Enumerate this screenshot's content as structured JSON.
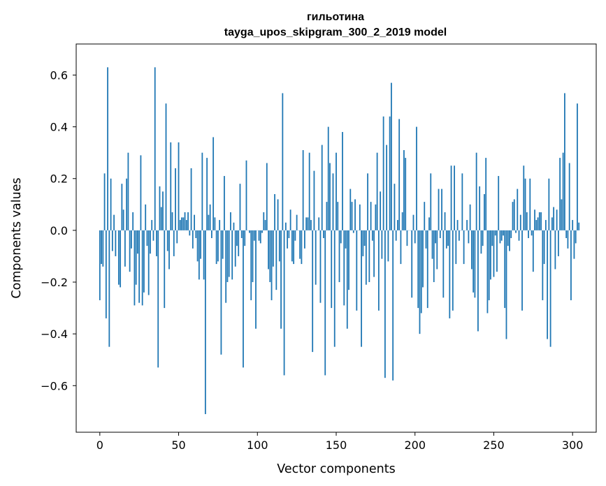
{
  "chart_data": {
    "type": "bar",
    "title": "гильотина",
    "subtitle": "tayga_upos_skipgram_300_2_2019 model",
    "xlabel": "Vector components",
    "ylabel": "Components values",
    "xlim": [
      -15,
      315
    ],
    "ylim": [
      -0.78,
      0.72
    ],
    "xticks": [
      0,
      50,
      100,
      150,
      200,
      250,
      300
    ],
    "xtick_labels": [
      "0",
      "50",
      "100",
      "150",
      "200",
      "250",
      "300"
    ],
    "yticks": [
      -0.6,
      -0.4,
      -0.2,
      0.0,
      0.2,
      0.4,
      0.6
    ],
    "ytick_labels": [
      "−0.6",
      "−0.4",
      "−0.2",
      "0.0",
      "0.2",
      "0.4",
      "0.6"
    ],
    "bar_color": "#1f77b4",
    "grid": false,
    "legend": "none",
    "values": [
      -0.27,
      -0.13,
      -0.14,
      0.22,
      -0.34,
      0.63,
      -0.45,
      0.2,
      -0.08,
      0.06,
      -0.1,
      0.0,
      -0.21,
      -0.22,
      0.18,
      0.08,
      -0.14,
      0.2,
      0.3,
      -0.16,
      -0.07,
      0.07,
      -0.29,
      -0.21,
      -0.09,
      -0.28,
      0.29,
      -0.29,
      -0.24,
      0.1,
      -0.06,
      -0.25,
      -0.09,
      0.04,
      -0.04,
      0.63,
      -0.1,
      -0.53,
      0.17,
      0.09,
      0.15,
      -0.3,
      0.49,
      -0.08,
      -0.15,
      0.34,
      0.07,
      -0.1,
      0.24,
      -0.05,
      0.34,
      0.04,
      0.05,
      0.05,
      0.07,
      0.04,
      0.07,
      -0.02,
      0.24,
      -0.07,
      0.06,
      -0.03,
      -0.12,
      -0.19,
      -0.11,
      0.3,
      -0.19,
      -0.71,
      0.28,
      0.06,
      0.1,
      -0.03,
      0.36,
      0.05,
      -0.13,
      -0.12,
      0.04,
      -0.48,
      -0.11,
      0.21,
      -0.28,
      -0.2,
      -0.18,
      0.07,
      -0.19,
      0.03,
      -0.14,
      -0.06,
      -0.1,
      0.18,
      -0.03,
      -0.53,
      -0.06,
      0.27,
      0.0,
      -0.01,
      -0.27,
      -0.2,
      -0.04,
      -0.38,
      0.0,
      -0.04,
      -0.05,
      -0.01,
      0.07,
      0.04,
      0.26,
      -0.15,
      -0.2,
      -0.27,
      -0.14,
      0.14,
      -0.23,
      0.12,
      -0.12,
      -0.38,
      0.53,
      -0.56,
      0.03,
      -0.07,
      -0.03,
      0.08,
      -0.12,
      -0.13,
      -0.04,
      0.06,
      0.0,
      -0.11,
      -0.13,
      0.31,
      -0.07,
      0.05,
      0.05,
      0.3,
      0.04,
      -0.47,
      0.23,
      -0.21,
      0.0,
      0.05,
      -0.28,
      0.33,
      -0.03,
      -0.56,
      0.11,
      0.4,
      0.26,
      -0.3,
      0.22,
      -0.45,
      0.3,
      0.11,
      -0.2,
      -0.05,
      0.38,
      -0.29,
      -0.07,
      -0.38,
      -0.23,
      0.16,
      0.11,
      -0.01,
      0.12,
      -0.31,
      0.0,
      0.1,
      -0.45,
      -0.1,
      -0.06,
      -0.21,
      0.22,
      -0.2,
      0.11,
      -0.04,
      -0.18,
      0.1,
      0.3,
      -0.31,
      0.15,
      -0.11,
      0.44,
      -0.57,
      0.33,
      -0.12,
      0.44,
      0.57,
      -0.58,
      0.18,
      -0.04,
      0.04,
      0.43,
      -0.13,
      0.07,
      0.31,
      0.28,
      -0.06,
      0.0,
      0.0,
      -0.26,
      0.06,
      -0.05,
      0.4,
      -0.3,
      -0.4,
      -0.32,
      -0.22,
      0.11,
      -0.07,
      -0.3,
      0.05,
      0.22,
      -0.11,
      -0.2,
      -0.05,
      -0.15,
      0.16,
      -0.03,
      0.16,
      -0.26,
      0.07,
      -0.07,
      -0.06,
      -0.34,
      0.25,
      -0.31,
      0.25,
      -0.13,
      0.04,
      -0.04,
      0.0,
      0.22,
      -0.13,
      0.0,
      0.04,
      -0.05,
      0.1,
      -0.15,
      -0.24,
      -0.26,
      0.3,
      -0.39,
      0.17,
      -0.09,
      -0.06,
      0.14,
      0.28,
      -0.32,
      -0.27,
      -0.19,
      -0.06,
      -0.18,
      -0.02,
      -0.16,
      0.21,
      -0.05,
      -0.04,
      -0.02,
      -0.3,
      -0.42,
      -0.06,
      -0.08,
      -0.03,
      0.11,
      0.12,
      -0.01,
      0.16,
      -0.04,
      0.06,
      -0.31,
      0.25,
      0.2,
      0.07,
      -0.03,
      0.2,
      -0.02,
      -0.16,
      0.08,
      0.04,
      0.05,
      0.07,
      0.07,
      -0.27,
      -0.13,
      0.04,
      -0.42,
      0.2,
      -0.45,
      0.05,
      0.09,
      -0.15,
      0.08,
      -0.1,
      0.28,
      0.12,
      0.3,
      0.53,
      -0.03,
      -0.07,
      0.26,
      -0.27,
      0.04,
      -0.11,
      -0.05,
      0.49,
      0.03
    ]
  }
}
